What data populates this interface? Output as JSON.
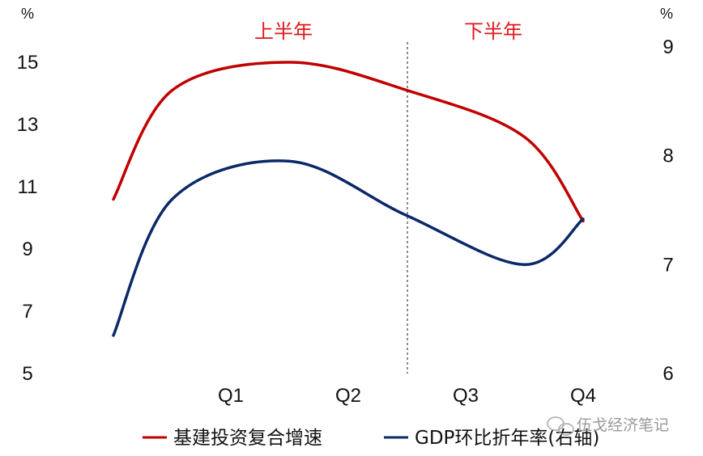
{
  "chart_data": {
    "type": "line",
    "categories": [
      "Q1",
      "Q2",
      "Q3",
      "Q4"
    ],
    "left_axis": {
      "unit": "%",
      "ticks": [
        5,
        7,
        9,
        11,
        13,
        15
      ],
      "range": [
        5,
        15
      ]
    },
    "right_axis": {
      "unit": "%",
      "ticks": [
        6,
        7,
        8,
        9
      ],
      "range": [
        6,
        9
      ]
    },
    "period_labels": {
      "first_half": "上半年",
      "second_half": "下半年"
    },
    "series": [
      {
        "name": "基建投资复合增速",
        "axis": "left",
        "color": "#c00000",
        "x": [
          0,
          0.5,
          1.5,
          2.5,
          3.5,
          4.0
        ],
        "y": [
          10.6,
          14.1,
          15.0,
          14.1,
          12.6,
          9.9
        ]
      },
      {
        "name": "GDP环比折年率(右轴)",
        "axis": "right",
        "color": "#0b2869",
        "x": [
          0,
          0.5,
          1.5,
          2.5,
          3.5,
          4.0
        ],
        "y": [
          6.35,
          7.6,
          7.95,
          7.45,
          7.0,
          7.42
        ]
      }
    ],
    "grid": false,
    "legend_position": "bottom"
  },
  "watermark": {
    "text": "伍戈经济笔记",
    "icon": "wechat-icon"
  }
}
